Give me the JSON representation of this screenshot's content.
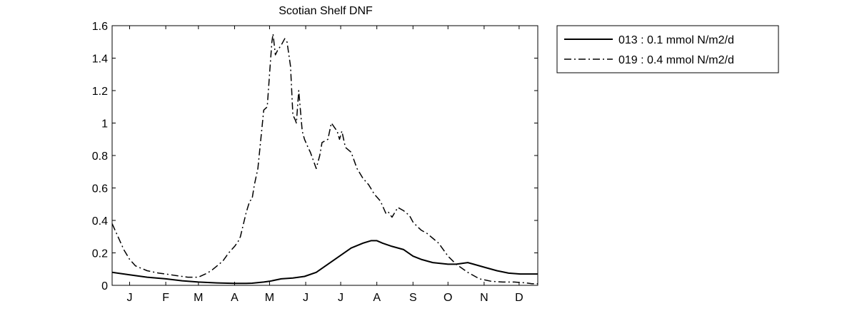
{
  "chart_data": {
    "type": "line",
    "title": "Scotian Shelf DNF",
    "xlabel": "",
    "ylabel": "",
    "xlim": [
      0,
      365
    ],
    "ylim": [
      0,
      1.6
    ],
    "x_ticks": [
      {
        "label": "J",
        "day": 15
      },
      {
        "label": "F",
        "day": 46
      },
      {
        "label": "M",
        "day": 74
      },
      {
        "label": "A",
        "day": 105
      },
      {
        "label": "M",
        "day": 135
      },
      {
        "label": "J",
        "day": 166
      },
      {
        "label": "J",
        "day": 196
      },
      {
        "label": "A",
        "day": 227
      },
      {
        "label": "S",
        "day": 258
      },
      {
        "label": "O",
        "day": 288
      },
      {
        "label": "N",
        "day": 319
      },
      {
        "label": "D",
        "day": 349
      }
    ],
    "y_ticks": [
      "0",
      "0.2",
      "0.4",
      "0.6",
      "0.8",
      "1",
      "1.2",
      "1.4",
      "1.6"
    ],
    "y_tick_values": [
      0,
      0.2,
      0.4,
      0.6,
      0.8,
      1,
      1.2,
      1.4,
      1.6
    ],
    "grid": false,
    "legend_position": "outside-top-right",
    "series": [
      {
        "name": "013 : 0.1 mmol N/m2/d",
        "style": "solid",
        "color": "#000000",
        "x": [
          0,
          15,
          30,
          46,
          60,
          74,
          90,
          105,
          115,
          120,
          130,
          135,
          145,
          155,
          165,
          175,
          185,
          195,
          205,
          215,
          222,
          227,
          232,
          240,
          250,
          258,
          265,
          275,
          288,
          295,
          305,
          310,
          320,
          330,
          340,
          350,
          365
        ],
        "y": [
          0.08,
          0.065,
          0.05,
          0.04,
          0.028,
          0.02,
          0.015,
          0.012,
          0.012,
          0.013,
          0.02,
          0.025,
          0.04,
          0.045,
          0.055,
          0.08,
          0.13,
          0.18,
          0.23,
          0.26,
          0.275,
          0.275,
          0.26,
          0.24,
          0.22,
          0.18,
          0.16,
          0.14,
          0.13,
          0.13,
          0.14,
          0.13,
          0.11,
          0.09,
          0.075,
          0.07,
          0.07
        ]
      },
      {
        "name": "019 : 0.4 mmol N/m2/d",
        "style": "dashdot",
        "color": "#000000",
        "x": [
          0,
          5,
          10,
          15,
          20,
          30,
          40,
          46,
          55,
          60,
          65,
          70,
          74,
          80,
          85,
          90,
          95,
          100,
          105,
          108,
          110,
          115,
          118,
          120,
          122,
          125,
          130,
          133,
          135,
          137,
          138,
          140,
          142,
          145,
          148,
          150,
          153,
          155,
          157,
          158,
          160,
          163,
          165,
          168,
          170,
          175,
          178,
          180,
          185,
          188,
          190,
          193,
          195,
          197,
          200,
          205,
          210,
          215,
          220,
          225,
          230,
          235,
          237,
          240,
          245,
          250,
          255,
          258,
          262,
          265,
          270,
          275,
          280,
          288,
          295,
          305,
          315,
          325,
          335,
          345,
          355,
          360,
          365
        ],
        "y": [
          0.38,
          0.3,
          0.22,
          0.16,
          0.12,
          0.09,
          0.075,
          0.07,
          0.06,
          0.055,
          0.05,
          0.05,
          0.05,
          0.07,
          0.09,
          0.12,
          0.15,
          0.2,
          0.24,
          0.27,
          0.3,
          0.45,
          0.52,
          0.53,
          0.62,
          0.72,
          1.08,
          1.1,
          1.3,
          1.5,
          1.55,
          1.42,
          1.45,
          1.48,
          1.52,
          1.5,
          1.35,
          1.05,
          1.02,
          1.0,
          1.2,
          0.95,
          0.9,
          0.85,
          0.82,
          0.72,
          0.8,
          0.88,
          0.9,
          1.0,
          0.98,
          0.95,
          0.9,
          0.95,
          0.85,
          0.82,
          0.72,
          0.66,
          0.62,
          0.56,
          0.52,
          0.44,
          0.45,
          0.42,
          0.48,
          0.46,
          0.43,
          0.39,
          0.36,
          0.34,
          0.32,
          0.29,
          0.26,
          0.18,
          0.13,
          0.08,
          0.04,
          0.025,
          0.02,
          0.02,
          0.015,
          0.01,
          0.01
        ]
      }
    ]
  }
}
